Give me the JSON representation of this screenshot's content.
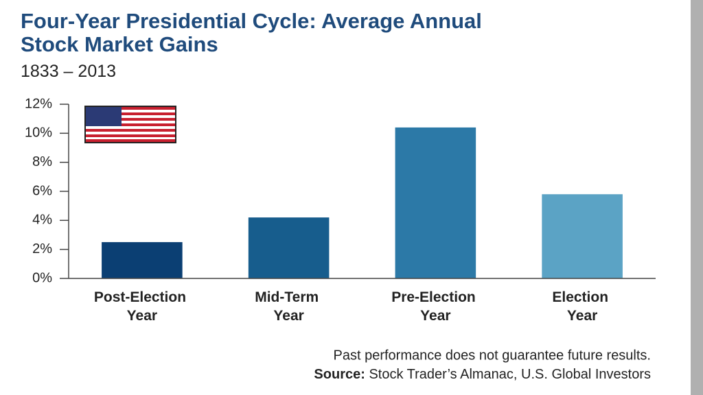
{
  "chart_data": {
    "type": "bar",
    "title": "Four-Year Presidential Cycle: Average Annual Stock Market Gains",
    "subtitle": "1833 – 2013",
    "categories": [
      "Post-Election Year",
      "Mid-Term Year",
      "Pre-Election Year",
      "Election Year"
    ],
    "values": [
      2.5,
      4.2,
      10.4,
      5.8
    ],
    "colors": [
      "#0b3f73",
      "#175d8d",
      "#2c79a7",
      "#5ba3c5"
    ],
    "ylim": [
      0,
      12
    ],
    "yticks": [
      {
        "value": 0,
        "label": "0%"
      },
      {
        "value": 2,
        "label": "2%"
      },
      {
        "value": 4,
        "label": "4%"
      },
      {
        "value": 6,
        "label": "6%"
      },
      {
        "value": 8,
        "label": "8%"
      },
      {
        "value": 10,
        "label": "10%"
      },
      {
        "value": 12,
        "label": "12%"
      }
    ],
    "grid": false,
    "note": "Past performance does not guarantee future results.",
    "source_label": "Source:",
    "source": "Stock Trader’s Almanac, U.S. Global Investors"
  }
}
